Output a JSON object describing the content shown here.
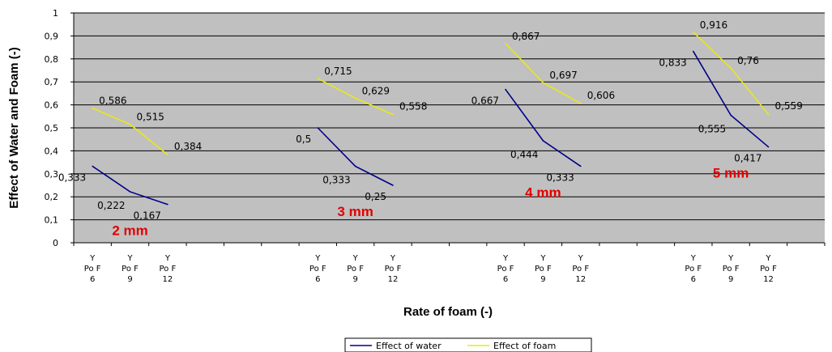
{
  "chart_data": {
    "type": "line",
    "title": "",
    "xlabel": "Rate of foam (-)",
    "ylabel": "Effect of Water and Foam (-)",
    "ylim": [
      0,
      1
    ],
    "yticks": [
      "0",
      "0,1",
      "0,2",
      "0,3",
      "0,4",
      "0,5",
      "0,6",
      "0,7",
      "0,8",
      "0,9",
      "1"
    ],
    "grid": true,
    "legend_position": "bottom",
    "colors": {
      "plot_bg": "#c0c0c0",
      "water": "#00008b",
      "foam": "#e8e81a",
      "group_label": "#e00000"
    },
    "groups": [
      {
        "label": "2 mm",
        "categories": [
          {
            "line1": "Y",
            "line2": "Po F",
            "line3": "6"
          },
          {
            "line1": "Y",
            "line2": "Po F",
            "line3": "9"
          },
          {
            "line1": "Y",
            "line2": "Po F",
            "line3": "12"
          }
        ],
        "water": [
          0.333,
          0.222,
          0.167
        ],
        "foam": [
          0.586,
          0.515,
          0.384
        ],
        "water_labels": [
          "0,333",
          "0,222",
          "0,167"
        ],
        "foam_labels": [
          "0,586",
          "0,515",
          "0,384"
        ]
      },
      {
        "label": "3 mm",
        "categories": [
          {
            "line1": "Y",
            "line2": "Po F",
            "line3": "6"
          },
          {
            "line1": "Y",
            "line2": "Po F",
            "line3": "9"
          },
          {
            "line1": "Y",
            "line2": "Po F",
            "line3": "12"
          }
        ],
        "water": [
          0.5,
          0.333,
          0.25
        ],
        "foam": [
          0.715,
          0.629,
          0.558
        ],
        "water_labels": [
          "0,5",
          "0,333",
          "0,25"
        ],
        "foam_labels": [
          "0,715",
          "0,629",
          "0,558"
        ]
      },
      {
        "label": "4 mm",
        "categories": [
          {
            "line1": "Y",
            "line2": "Po F",
            "line3": "6"
          },
          {
            "line1": "Y",
            "line2": "Po F",
            "line3": "9"
          },
          {
            "line1": "Y",
            "line2": "Po F",
            "line3": "12"
          }
        ],
        "water": [
          0.667,
          0.444,
          0.333
        ],
        "foam": [
          0.867,
          0.697,
          0.606
        ],
        "water_labels": [
          "0,667",
          "0,444",
          "0,333"
        ],
        "foam_labels": [
          "0,867",
          "0,697",
          "0,606"
        ]
      },
      {
        "label": "5 mm",
        "categories": [
          {
            "line1": "Y",
            "line2": "Po F",
            "line3": "6"
          },
          {
            "line1": "Y",
            "line2": "Po F",
            "line3": "9"
          },
          {
            "line1": "Y",
            "line2": "Po F",
            "line3": "12"
          }
        ],
        "water": [
          0.833,
          0.555,
          0.417
        ],
        "foam": [
          0.916,
          0.76,
          0.559
        ],
        "water_labels": [
          "0,833",
          "0,555",
          "0,417"
        ],
        "foam_labels": [
          "0,916",
          "0,76",
          "0,559"
        ]
      }
    ],
    "series": [
      {
        "name": "Effect of water",
        "key": "water"
      },
      {
        "name": "Effect of foam",
        "key": "foam"
      }
    ]
  }
}
